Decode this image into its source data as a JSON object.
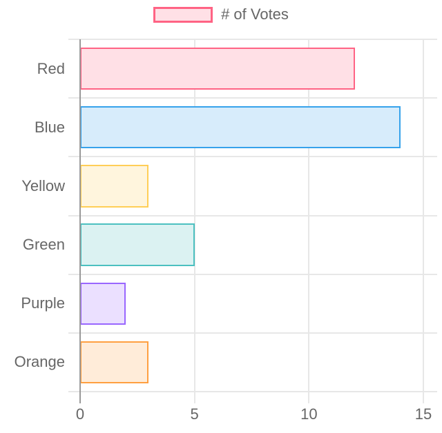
{
  "chart_data": {
    "type": "bar",
    "orientation": "horizontal",
    "title": "",
    "legend": {
      "position": "top",
      "label": "# of Votes"
    },
    "categories": [
      "Red",
      "Blue",
      "Yellow",
      "Green",
      "Purple",
      "Orange"
    ],
    "values": [
      12,
      14,
      3,
      5,
      2,
      3
    ],
    "series": [
      {
        "name": "# of Votes",
        "values": [
          12,
          14,
          3,
          5,
          2,
          3
        ]
      }
    ],
    "series_colors": [
      {
        "border": "#FF6384",
        "fill": "#FFE0E6"
      },
      {
        "border": "#36A2EB",
        "fill": "#D7ECFB"
      },
      {
        "border": "#FFCE56",
        "fill": "#FFF5DD"
      },
      {
        "border": "#4BC0C0",
        "fill": "#DBF2F2"
      },
      {
        "border": "#9966FF",
        "fill": "#EBE0FF"
      },
      {
        "border": "#FF9F40",
        "fill": "#FFECD9"
      }
    ],
    "xlabel": "",
    "ylabel": "",
    "xlim": [
      0,
      15
    ],
    "x_ticks": [
      0,
      5,
      10,
      15
    ],
    "grid": true,
    "text_color": "#666666",
    "grid_color": "#e7e7e7",
    "zero_line_color": "#999999"
  }
}
